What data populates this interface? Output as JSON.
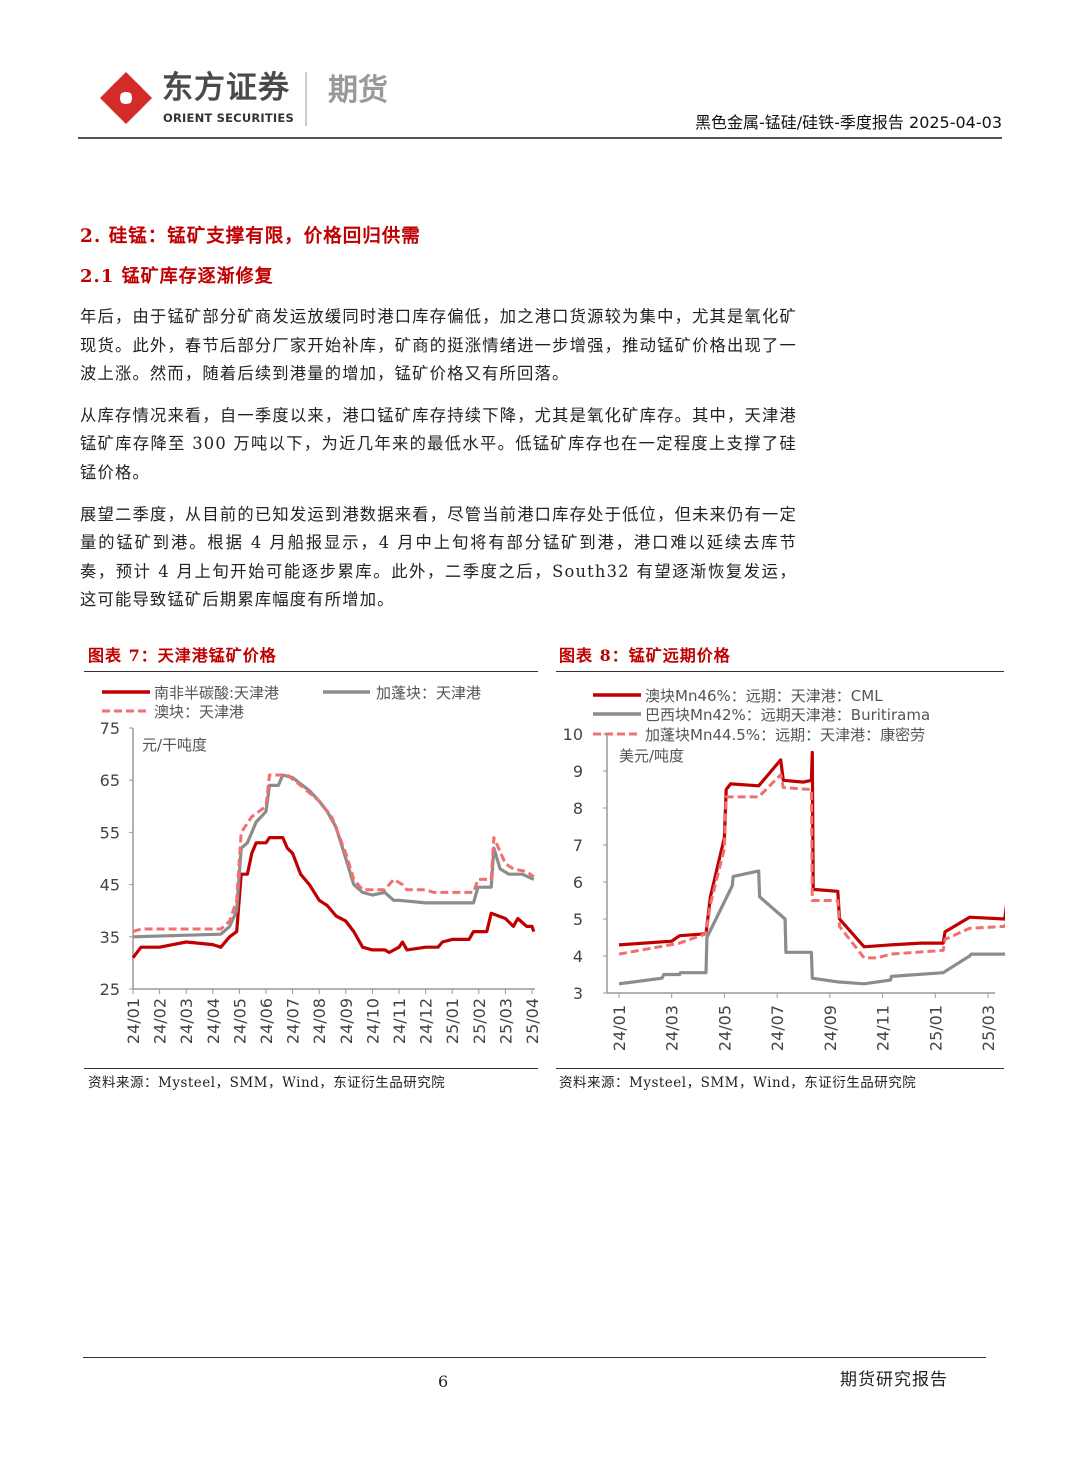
{
  "header": {
    "logo_cn": "东方证券",
    "logo_en": "ORIENT SECURITIES",
    "logo_division": "期货",
    "report_info": "黑色金属-锰硅/硅铁-季度报告 2025-04-03",
    "logo_color": "#d42a2a"
  },
  "section": {
    "heading": "2. 硅锰：锰矿支撑有限，价格回归供需",
    "subheading": "2.1 锰矿库存逐渐修复",
    "paragraphs": [
      "年后，由于锰矿部分矿商发运放缓同时港口库存偏低，加之港口货源较为集中，尤其是氧化矿现货。此外，春节后部分厂家开始补库，矿商的挺涨情绪进一步增强，推动锰矿价格出现了一波上涨。然而，随着后续到港量的增加，锰矿价格又有所回落。",
      "从库存情况来看，自一季度以来，港口锰矿库存持续下降，尤其是氧化矿库存。其中，天津港锰矿库存降至 300 万吨以下，为近几年来的最低水平。低锰矿库存也在一定程度上支撑了硅锰价格。",
      "展望二季度，从目前的已知发运到港数据来看，尽管当前港口库存处于低位，但未来仍有一定量的锰矿到港。根据 4 月船报显示，4 月中上旬将有部分锰矿到港，港口难以延续去库节奏，预计 4 月上旬开始可能逐步累库。此外，二季度之后，South32 有望逐渐恢复发运，这可能导致锰矿后期累库幅度有所增加。"
    ]
  },
  "figures": [
    {
      "title": "图表 7：天津港锰矿价格",
      "source": "资料来源：Mysteel，SMM，Wind，东证衍生品研究院"
    },
    {
      "title": "图表 8：锰矿远期价格",
      "source": "资料来源：Mysteel，SMM，Wind，东证衍生品研究院"
    }
  ],
  "chart_data": [
    {
      "type": "line",
      "title": "图表 7：天津港锰矿价格",
      "ylabel": "元/干吨度",
      "ylim": [
        25,
        75
      ],
      "yticks": [
        "25",
        "35",
        "45",
        "55",
        "65",
        "75"
      ],
      "xticks": [
        "24/01",
        "24/02",
        "24/03",
        "24/04",
        "24/05",
        "24/06",
        "24/07",
        "24/08",
        "24/09",
        "24/10",
        "24/11",
        "24/12",
        "25/01",
        "25/02",
        "25/03",
        "25/04"
      ],
      "legend": "top",
      "grid": false,
      "series": [
        {
          "name": "南非半碳酸:天津港",
          "color": "#c00000",
          "style": "solid",
          "points": [
            [
              "2024-01-01",
              31
            ],
            [
              "2024-01-10",
              33
            ],
            [
              "2024-02-01",
              33
            ],
            [
              "2024-03-01",
              34
            ],
            [
              "2024-04-01",
              33.5
            ],
            [
              "2024-04-10",
              33
            ],
            [
              "2024-04-20",
              35
            ],
            [
              "2024-04-28",
              36
            ],
            [
              "2024-05-03",
              47
            ],
            [
              "2024-05-10",
              47
            ],
            [
              "2024-05-15",
              51
            ],
            [
              "2024-05-20",
              53
            ],
            [
              "2024-06-01",
              53
            ],
            [
              "2024-06-05",
              54
            ],
            [
              "2024-06-20",
              54
            ],
            [
              "2024-06-25",
              52
            ],
            [
              "2024-07-01",
              51
            ],
            [
              "2024-07-10",
              47
            ],
            [
              "2024-07-20",
              45
            ],
            [
              "2024-08-01",
              42
            ],
            [
              "2024-08-10",
              41
            ],
            [
              "2024-08-20",
              39
            ],
            [
              "2024-09-01",
              38
            ],
            [
              "2024-09-10",
              36
            ],
            [
              "2024-09-20",
              33
            ],
            [
              "2024-10-01",
              32.5
            ],
            [
              "2024-10-15",
              32.5
            ],
            [
              "2024-10-20",
              32
            ],
            [
              "2024-11-01",
              33
            ],
            [
              "2024-11-05",
              34
            ],
            [
              "2024-11-10",
              32.5
            ],
            [
              "2024-12-01",
              33
            ],
            [
              "2024-12-15",
              33
            ],
            [
              "2024-12-20",
              34
            ],
            [
              "2025-01-01",
              34.5
            ],
            [
              "2025-01-20",
              34.5
            ],
            [
              "2025-01-25",
              36
            ],
            [
              "2025-02-10",
              36
            ],
            [
              "2025-02-15",
              39.5
            ],
            [
              "2025-03-01",
              38.5
            ],
            [
              "2025-03-10",
              37
            ],
            [
              "2025-03-15",
              38.5
            ],
            [
              "2025-03-25",
              37
            ],
            [
              "2025-04-01",
              37
            ],
            [
              "2025-04-03",
              36
            ]
          ]
        },
        {
          "name": "加蓬块：天津港",
          "color": "#8c8c8c",
          "style": "solid",
          "points": [
            [
              "2024-01-01",
              35
            ],
            [
              "2024-04-10",
              35.5
            ],
            [
              "2024-04-20",
              37
            ],
            [
              "2024-04-28",
              40
            ],
            [
              "2024-05-03",
              52
            ],
            [
              "2024-05-10",
              53
            ],
            [
              "2024-05-20",
              57
            ],
            [
              "2024-06-01",
              59
            ],
            [
              "2024-06-05",
              64
            ],
            [
              "2024-06-15",
              64
            ],
            [
              "2024-06-20",
              66
            ],
            [
              "2024-07-01",
              65.5
            ],
            [
              "2024-07-20",
              63
            ],
            [
              "2024-08-01",
              61
            ],
            [
              "2024-08-10",
              59
            ],
            [
              "2024-08-20",
              56
            ],
            [
              "2024-09-01",
              50
            ],
            [
              "2024-09-10",
              45
            ],
            [
              "2024-09-20",
              43.5
            ],
            [
              "2024-10-01",
              43
            ],
            [
              "2024-10-15",
              43.5
            ],
            [
              "2024-10-25",
              42
            ],
            [
              "2024-11-01",
              42
            ],
            [
              "2024-12-01",
              41.5
            ],
            [
              "2025-01-25",
              41.5
            ],
            [
              "2025-01-30",
              44.5
            ],
            [
              "2025-02-15",
              44.5
            ],
            [
              "2025-02-18",
              52
            ],
            [
              "2025-02-25",
              48
            ],
            [
              "2025-03-05",
              47
            ],
            [
              "2025-03-20",
              47
            ],
            [
              "2025-04-03",
              46
            ]
          ]
        },
        {
          "name": "澳块：天津港",
          "color": "#f07070",
          "style": "dashed",
          "points": [
            [
              "2024-01-01",
              36
            ],
            [
              "2024-01-10",
              36.5
            ],
            [
              "2024-04-10",
              36.5
            ],
            [
              "2024-04-20",
              38
            ],
            [
              "2024-04-28",
              42
            ],
            [
              "2024-05-03",
              55
            ],
            [
              "2024-05-15",
              58
            ],
            [
              "2024-06-01",
              60
            ],
            [
              "2024-06-05",
              66
            ],
            [
              "2024-06-25",
              66
            ],
            [
              "2024-07-10",
              64
            ],
            [
              "2024-08-01",
              61
            ],
            [
              "2024-08-15",
              58
            ],
            [
              "2024-09-01",
              51
            ],
            [
              "2024-09-10",
              46
            ],
            [
              "2024-09-20",
              44
            ],
            [
              "2024-10-15",
              44
            ],
            [
              "2024-10-25",
              46
            ],
            [
              "2024-11-05",
              45
            ],
            [
              "2024-11-10",
              44
            ],
            [
              "2024-12-01",
              44
            ],
            [
              "2024-12-10",
              43.5
            ],
            [
              "2025-01-25",
              43.5
            ],
            [
              "2025-01-30",
              46
            ],
            [
              "2025-02-15",
              46
            ],
            [
              "2025-02-18",
              54
            ],
            [
              "2025-03-01",
              49
            ],
            [
              "2025-03-10",
              48
            ],
            [
              "2025-03-25",
              47.5
            ],
            [
              "2025-04-03",
              46.5
            ]
          ]
        }
      ]
    },
    {
      "type": "line",
      "title": "图表 8：锰矿远期价格",
      "ylabel": "美元/吨度",
      "ylim": [
        3,
        10
      ],
      "yticks": [
        "3",
        "4",
        "5",
        "6",
        "7",
        "8",
        "9",
        "10"
      ],
      "xticks": [
        "24/01",
        "24/03",
        "24/05",
        "24/07",
        "24/09",
        "24/11",
        "25/01",
        "25/03"
      ],
      "legend": "top",
      "grid": false,
      "series": [
        {
          "name": "澳块Mn46%：远期：天津港：CML",
          "color": "#c00000",
          "style": "solid",
          "points": [
            [
              "2024-01-01",
              4.3
            ],
            [
              "2024-03-01",
              4.4
            ],
            [
              "2024-03-10",
              4.55
            ],
            [
              "2024-04-10",
              4.6
            ],
            [
              "2024-04-15",
              5.6
            ],
            [
              "2024-05-01",
              7.2
            ],
            [
              "2024-05-03",
              8.5
            ],
            [
              "2024-05-08",
              8.65
            ],
            [
              "2024-06-10",
              8.6
            ],
            [
              "2024-07-05",
              9.3
            ],
            [
              "2024-07-08",
              8.75
            ],
            [
              "2024-08-01",
              8.7
            ],
            [
              "2024-08-10",
              8.75
            ],
            [
              "2024-08-11",
              9.5
            ],
            [
              "2024-08-12",
              5.8
            ],
            [
              "2024-09-10",
              5.75
            ],
            [
              "2024-09-12",
              5.0
            ],
            [
              "2024-10-10",
              4.25
            ],
            [
              "2024-11-10",
              4.3
            ],
            [
              "2024-12-15",
              4.35
            ],
            [
              "2025-01-10",
              4.35
            ],
            [
              "2025-01-12",
              4.65
            ],
            [
              "2025-02-10",
              5.05
            ],
            [
              "2025-03-20",
              5.0
            ],
            [
              "2025-03-22",
              5.35
            ],
            [
              "2025-03-23",
              5.1
            ]
          ]
        },
        {
          "name": "巴西块Mn42%：远期天津港：Buritirama",
          "color": "#8c8c8c",
          "style": "solid",
          "points": [
            [
              "2024-01-01",
              3.25
            ],
            [
              "2024-02-20",
              3.4
            ],
            [
              "2024-02-22",
              3.5
            ],
            [
              "2024-03-10",
              3.5
            ],
            [
              "2024-03-11",
              3.55
            ],
            [
              "2024-04-10",
              3.55
            ],
            [
              "2024-04-11",
              4.5
            ],
            [
              "2024-05-10",
              5.9
            ],
            [
              "2024-05-11",
              6.15
            ],
            [
              "2024-06-10",
              6.3
            ],
            [
              "2024-06-11",
              5.6
            ],
            [
              "2024-07-10",
              5.0
            ],
            [
              "2024-07-11",
              4.1
            ],
            [
              "2024-08-10",
              4.1
            ],
            [
              "2024-08-11",
              3.4
            ],
            [
              "2024-09-10",
              3.3
            ],
            [
              "2024-10-10",
              3.25
            ],
            [
              "2024-11-10",
              3.35
            ],
            [
              "2024-11-11",
              3.45
            ],
            [
              "2025-01-10",
              3.55
            ],
            [
              "2025-02-10",
              4.0
            ],
            [
              "2025-02-12",
              4.05
            ],
            [
              "2025-03-22",
              4.05
            ],
            [
              "2025-03-23",
              4.1
            ]
          ]
        },
        {
          "name": "加蓬块Mn44.5%：远期：天津港：康密劳",
          "color": "#f07070",
          "style": "dashed",
          "points": [
            [
              "2024-01-01",
              4.05
            ],
            [
              "2024-03-10",
              4.35
            ],
            [
              "2024-04-10",
              4.6
            ],
            [
              "2024-04-15",
              5.4
            ],
            [
              "2024-05-01",
              6.9
            ],
            [
              "2024-05-03",
              8.3
            ],
            [
              "2024-06-10",
              8.3
            ],
            [
              "2024-07-05",
              8.9
            ],
            [
              "2024-07-08",
              8.55
            ],
            [
              "2024-08-10",
              8.5
            ],
            [
              "2024-08-11",
              5.5
            ],
            [
              "2024-09-10",
              5.5
            ],
            [
              "2024-09-12",
              4.8
            ],
            [
              "2024-10-10",
              3.95
            ],
            [
              "2024-10-25",
              3.95
            ],
            [
              "2024-11-10",
              4.05
            ],
            [
              "2025-01-10",
              4.15
            ],
            [
              "2025-01-12",
              4.45
            ],
            [
              "2025-02-10",
              4.75
            ],
            [
              "2025-03-20",
              4.8
            ],
            [
              "2025-03-23",
              5.0
            ]
          ]
        }
      ]
    }
  ],
  "footer": {
    "page_number": "6",
    "report_type": "期货研究报告"
  }
}
